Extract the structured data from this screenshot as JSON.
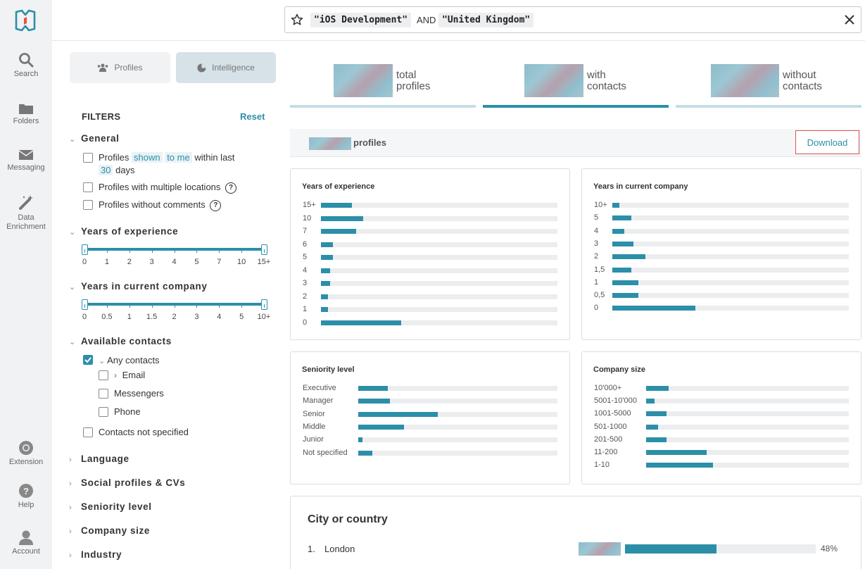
{
  "nav": {
    "items": [
      {
        "label": "Search",
        "icon": "search-icon"
      },
      {
        "label": "Folders",
        "icon": "folder-icon"
      },
      {
        "label": "Messaging",
        "icon": "mail-icon"
      },
      {
        "label": "Data Enrichment",
        "icon": "magic-wand-icon"
      },
      {
        "label": "Extension",
        "icon": "chrome-icon"
      },
      {
        "label": "Help",
        "icon": "help-icon"
      },
      {
        "label": "Account",
        "icon": "user-icon"
      }
    ]
  },
  "search": {
    "term1": "\"iOS Development\"",
    "operator": "AND",
    "term2": "\"United Kingdom\""
  },
  "view_toggle": {
    "profiles": "Profiles",
    "intelligence": "Intelligence",
    "active": "Intelligence"
  },
  "filters": {
    "title": "FILTERS",
    "reset": "Reset",
    "general": {
      "title": "General",
      "shown_prefix": "Profiles",
      "shown": "shown",
      "to_me": "to me",
      "within": "within last",
      "days_value": "30",
      "days": "days",
      "multiple_locations": "Profiles with multiple locations",
      "without_comments": "Profiles without comments"
    },
    "years_experience": {
      "title": "Years of experience",
      "ticks": [
        "0",
        "1",
        "2",
        "3",
        "4",
        "5",
        "7",
        "10",
        "15+"
      ]
    },
    "years_company": {
      "title": "Years in current company",
      "ticks": [
        "0",
        "0.5",
        "1",
        "1.5",
        "2",
        "3",
        "4",
        "5",
        "10+"
      ]
    },
    "contacts": {
      "title": "Available contacts",
      "any": "Any contacts",
      "email": "Email",
      "messengers": "Messengers",
      "phone": "Phone",
      "not_specified": "Contacts not specified"
    },
    "collapsed": [
      "Language",
      "Social profiles & CVs",
      "Seniority level",
      "Company size",
      "Industry"
    ]
  },
  "stats": {
    "total": [
      "total",
      "profiles"
    ],
    "with": [
      "with",
      "contacts"
    ],
    "without": [
      "without",
      "contacts"
    ],
    "active": "with"
  },
  "profiles_label": "profiles",
  "download": "Download",
  "cards": {
    "experience": {
      "title": "Years of experience",
      "rows": [
        {
          "label": "15+",
          "value": 0.13
        },
        {
          "label": "10",
          "value": 0.18
        },
        {
          "label": "7",
          "value": 0.15
        },
        {
          "label": "6",
          "value": 0.05
        },
        {
          "label": "5",
          "value": 0.05
        },
        {
          "label": "4",
          "value": 0.04
        },
        {
          "label": "3",
          "value": 0.04
        },
        {
          "label": "2",
          "value": 0.03
        },
        {
          "label": "1",
          "value": 0.03
        },
        {
          "label": "0",
          "value": 0.34
        }
      ]
    },
    "company_years": {
      "title": "Years in current company",
      "rows": [
        {
          "label": "10+",
          "value": 0.03
        },
        {
          "label": "5",
          "value": 0.08
        },
        {
          "label": "4",
          "value": 0.05
        },
        {
          "label": "3",
          "value": 0.09
        },
        {
          "label": "2",
          "value": 0.14
        },
        {
          "label": "1,5",
          "value": 0.08
        },
        {
          "label": "1",
          "value": 0.11
        },
        {
          "label": "0,5",
          "value": 0.11
        },
        {
          "label": "0",
          "value": 0.35
        }
      ]
    },
    "seniority": {
      "title": "Seniority level",
      "rows": [
        {
          "label": "Executive",
          "value": 0.15
        },
        {
          "label": "Manager",
          "value": 0.16
        },
        {
          "label": "Senior",
          "value": 0.4
        },
        {
          "label": "Middle",
          "value": 0.23
        },
        {
          "label": "Junior",
          "value": 0.02
        },
        {
          "label": "Not specified",
          "value": 0.07
        }
      ]
    },
    "company_size": {
      "title": "Company size",
      "rows": [
        {
          "label": "10'000+",
          "value": 0.11
        },
        {
          "label": "5001-10'000",
          "value": 0.04
        },
        {
          "label": "1001-5000",
          "value": 0.1
        },
        {
          "label": "501-1000",
          "value": 0.06
        },
        {
          "label": "201-500",
          "value": 0.1
        },
        {
          "label": "11-200",
          "value": 0.3
        },
        {
          "label": "1-10",
          "value": 0.33
        }
      ]
    }
  },
  "city": {
    "title": "City or country",
    "rows": [
      {
        "rank": "1.",
        "name": "London",
        "percent": "48%",
        "value": 0.48
      }
    ]
  },
  "colors": {
    "accent": "#2c8fa8",
    "track": "#ebedef",
    "download_border": "#d9534f"
  }
}
